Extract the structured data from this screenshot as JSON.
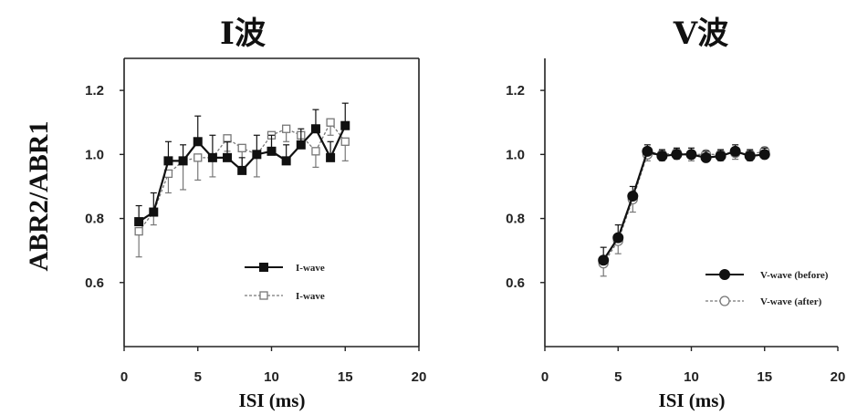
{
  "figure": {
    "ylabel": "ABR2/ABR1"
  },
  "chart_data": [
    {
      "type": "line",
      "title": "I波",
      "xlabel": "ISI (ms)",
      "ylabel": "ABR2/ABR1",
      "xlim": [
        0,
        20
      ],
      "ylim": [
        0.4,
        1.3
      ],
      "xticks": [
        "0",
        "5",
        "10",
        "15",
        "20"
      ],
      "yticks": [
        "0.6",
        "0.8",
        "1.0",
        "1.2"
      ],
      "grid": false,
      "legend_position": "lower-right",
      "series": [
        {
          "name": "I-wave",
          "marker": "filled-square",
          "line_style": "solid",
          "color": "#111111",
          "x": [
            1,
            2,
            3,
            4,
            5,
            6,
            7,
            8,
            9,
            10,
            11,
            12,
            13,
            14,
            15
          ],
          "y": [
            0.79,
            0.82,
            0.98,
            0.98,
            1.04,
            0.99,
            0.99,
            0.95,
            1.0,
            1.01,
            0.98,
            1.03,
            1.08,
            0.99,
            1.09
          ],
          "err": [
            0.05,
            0.06,
            0.06,
            0.05,
            0.08,
            0.07,
            0.05,
            0.04,
            0.06,
            0.05,
            0.05,
            0.05,
            0.06,
            0.05,
            0.07
          ]
        },
        {
          "name": "I-wave",
          "marker": "open-square",
          "line_style": "dashed",
          "color": "#777777",
          "x": [
            1,
            2,
            3,
            4,
            5,
            6,
            7,
            8,
            9,
            10,
            11,
            12,
            13,
            14,
            15
          ],
          "y": [
            0.76,
            0.82,
            0.94,
            0.98,
            0.99,
            0.99,
            1.05,
            1.02,
            1.0,
            1.06,
            1.08,
            1.06,
            1.01,
            1.1,
            1.04
          ],
          "err": [
            0.08,
            0.04,
            0.06,
            0.09,
            0.07,
            0.06,
            0.04,
            0.06,
            0.07,
            0.04,
            0.04,
            0.04,
            0.05,
            0.04,
            0.06
          ]
        }
      ]
    },
    {
      "type": "line",
      "title": "V波",
      "xlabel": "ISI (ms)",
      "ylabel": "ABR2/ABR1",
      "xlim": [
        0,
        20
      ],
      "ylim": [
        0.4,
        1.3
      ],
      "xticks": [
        "0",
        "5",
        "10",
        "15",
        "20"
      ],
      "yticks": [
        "0.6",
        "0.8",
        "1.0",
        "1.2"
      ],
      "grid": false,
      "legend_position": "lower-right",
      "series": [
        {
          "name": "V-wave (before)",
          "marker": "filled-circle",
          "line_style": "solid",
          "color": "#111111",
          "x": [
            4,
            5,
            6,
            7,
            8,
            9,
            10,
            11,
            12,
            13,
            14,
            15
          ],
          "y": [
            0.67,
            0.74,
            0.87,
            1.01,
            0.995,
            1.0,
            1.0,
            0.99,
            0.995,
            1.01,
            0.995,
            1.0
          ],
          "err": [
            0.04,
            0.04,
            0.03,
            0.02,
            0.02,
            0.02,
            0.02,
            0.02,
            0.02,
            0.02,
            0.02,
            0.02
          ]
        },
        {
          "name": "V-wave (after)",
          "marker": "open-circle",
          "line_style": "dashed",
          "color": "#777777",
          "x": [
            4,
            5,
            6,
            7,
            8,
            9,
            10,
            11,
            12,
            13,
            14,
            15
          ],
          "y": [
            0.66,
            0.73,
            0.86,
            1.0,
            1.0,
            1.005,
            1.0,
            1.0,
            1.0,
            1.005,
            1.0,
            1.01
          ],
          "err": [
            0.04,
            0.04,
            0.04,
            0.02,
            0.02,
            0.02,
            0.02,
            0.02,
            0.02,
            0.02,
            0.02,
            0.02
          ]
        }
      ]
    }
  ]
}
